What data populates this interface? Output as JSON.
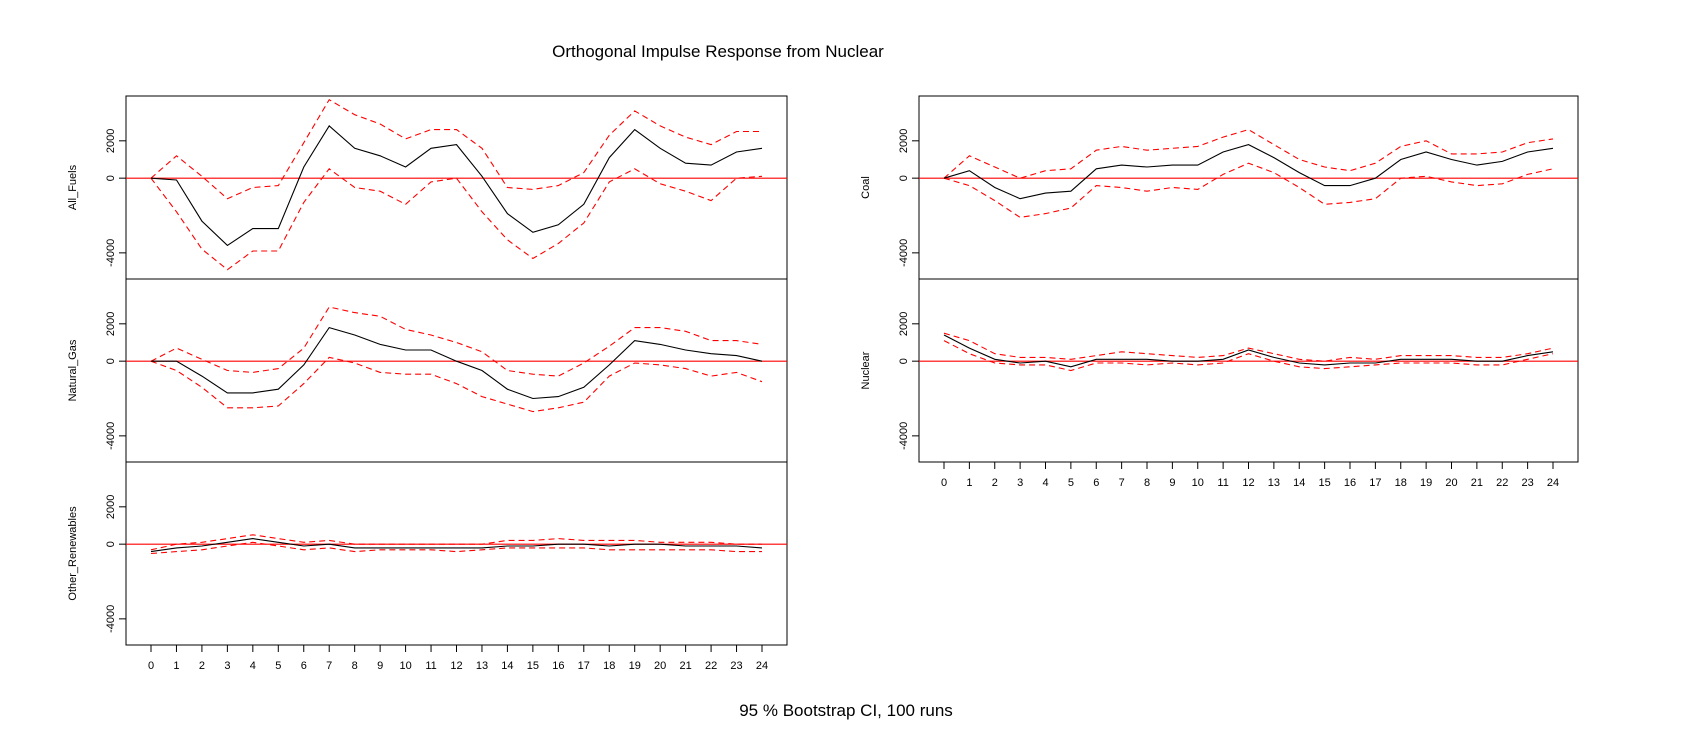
{
  "chart_data": {
    "type": "line",
    "title": "Orthogonal Impulse Response from Nuclear",
    "footer": "95 % Bootstrap CI,  100 runs",
    "x": [
      0,
      1,
      2,
      3,
      4,
      5,
      6,
      7,
      8,
      9,
      10,
      11,
      12,
      13,
      14,
      15,
      16,
      17,
      18,
      19,
      20,
      21,
      22,
      23,
      24
    ],
    "x_ticks": [
      "0",
      "1",
      "2",
      "3",
      "4",
      "5",
      "6",
      "7",
      "8",
      "9",
      "10",
      "11",
      "12",
      "13",
      "14",
      "15",
      "16",
      "17",
      "18",
      "19",
      "20",
      "21",
      "22",
      "23",
      "24"
    ],
    "y_ticks": [
      2000,
      0,
      -4000
    ],
    "y_tick_labels": [
      "2000",
      "0",
      "-4000"
    ],
    "ylim": [
      -5400,
      4400
    ],
    "reference_line": 0,
    "colors": {
      "response": "#000000",
      "ci": "#ff0000",
      "zero": "#ff0000",
      "frame": "#000000"
    },
    "panels": [
      {
        "ylabel": "All_Fuels",
        "column": "left",
        "row": 0,
        "response": [
          0,
          -100,
          -2300,
          -3600,
          -2700,
          -2700,
          600,
          2800,
          1600,
          1200,
          600,
          1600,
          1800,
          100,
          -1900,
          -2900,
          -2500,
          -1400,
          1100,
          2600,
          1600,
          800,
          700,
          1400,
          1600
        ],
        "upper": [
          0,
          1200,
          100,
          -1100,
          -500,
          -400,
          1900,
          4200,
          3400,
          2900,
          2100,
          2600,
          2600,
          1600,
          -500,
          -600,
          -400,
          300,
          2300,
          3600,
          2800,
          2200,
          1800,
          2500,
          2500
        ],
        "lower": [
          0,
          -1800,
          -3800,
          -4900,
          -3900,
          -3900,
          -1300,
          500,
          -500,
          -700,
          -1400,
          -200,
          0,
          -1800,
          -3300,
          -4300,
          -3500,
          -2400,
          -200,
          500,
          -300,
          -700,
          -1200,
          0,
          100
        ]
      },
      {
        "ylabel": "Natural_Gas",
        "column": "left",
        "row": 1,
        "response": [
          0,
          0,
          -800,
          -1700,
          -1700,
          -1500,
          -200,
          1800,
          1400,
          900,
          600,
          600,
          0,
          -500,
          -1500,
          -2000,
          -1900,
          -1400,
          -200,
          1100,
          900,
          600,
          400,
          300,
          0
        ],
        "upper": [
          0,
          700,
          100,
          -500,
          -600,
          -400,
          700,
          2900,
          2600,
          2400,
          1700,
          1400,
          1000,
          500,
          -500,
          -700,
          -800,
          -100,
          800,
          1800,
          1800,
          1600,
          1100,
          1100,
          900
        ],
        "lower": [
          0,
          -500,
          -1400,
          -2500,
          -2500,
          -2400,
          -1200,
          200,
          -100,
          -600,
          -700,
          -700,
          -1200,
          -1900,
          -2300,
          -2700,
          -2500,
          -2200,
          -800,
          -100,
          -200,
          -400,
          -800,
          -600,
          -1100
        ]
      },
      {
        "ylabel": "Other_Renewables",
        "column": "left",
        "row": 2,
        "response": [
          -400,
          -200,
          -100,
          100,
          300,
          100,
          -100,
          0,
          -200,
          -200,
          -200,
          -200,
          -200,
          -200,
          -100,
          -100,
          0,
          0,
          -100,
          0,
          0,
          -100,
          -100,
          -100,
          -200
        ],
        "upper": [
          -300,
          0,
          100,
          300,
          500,
          300,
          100,
          200,
          0,
          0,
          0,
          0,
          0,
          0,
          200,
          200,
          300,
          200,
          200,
          200,
          100,
          100,
          100,
          0,
          0
        ],
        "lower": [
          -500,
          -400,
          -300,
          -100,
          100,
          -100,
          -300,
          -200,
          -400,
          -300,
          -300,
          -300,
          -400,
          -300,
          -200,
          -200,
          -200,
          -200,
          -300,
          -300,
          -300,
          -300,
          -300,
          -400,
          -400
        ]
      },
      {
        "ylabel": "Coal",
        "column": "right",
        "row": 0,
        "response": [
          0,
          400,
          -500,
          -1100,
          -800,
          -700,
          500,
          700,
          600,
          700,
          700,
          1400,
          1800,
          1100,
          300,
          -400,
          -400,
          0,
          1000,
          1400,
          1000,
          700,
          900,
          1400,
          1600
        ],
        "upper": [
          0,
          1200,
          600,
          0,
          400,
          500,
          1500,
          1700,
          1500,
          1600,
          1700,
          2200,
          2600,
          1800,
          1000,
          600,
          400,
          800,
          1700,
          2000,
          1300,
          1300,
          1400,
          1900,
          2100
        ],
        "lower": [
          0,
          -400,
          -1200,
          -2100,
          -1900,
          -1600,
          -400,
          -500,
          -700,
          -500,
          -600,
          200,
          800,
          300,
          -500,
          -1400,
          -1300,
          -1100,
          0,
          100,
          -200,
          -400,
          -300,
          200,
          500
        ]
      },
      {
        "ylabel": "Nuclear",
        "column": "right",
        "row": 1,
        "response": [
          1400,
          700,
          100,
          -100,
          0,
          -300,
          100,
          100,
          100,
          0,
          0,
          100,
          600,
          200,
          -100,
          -200,
          -100,
          -100,
          100,
          100,
          100,
          0,
          0,
          300,
          500
        ],
        "upper": [
          1500,
          1100,
          400,
          200,
          200,
          100,
          300,
          500,
          400,
          300,
          200,
          300,
          700,
          400,
          100,
          0,
          200,
          100,
          300,
          300,
          300,
          200,
          200,
          400,
          700
        ],
        "lower": [
          1100,
          400,
          -100,
          -200,
          -200,
          -500,
          -100,
          -100,
          -200,
          -100,
          -200,
          -100,
          400,
          0,
          -300,
          -400,
          -300,
          -200,
          -100,
          -100,
          -100,
          -200,
          -200,
          100,
          400
        ]
      }
    ]
  }
}
